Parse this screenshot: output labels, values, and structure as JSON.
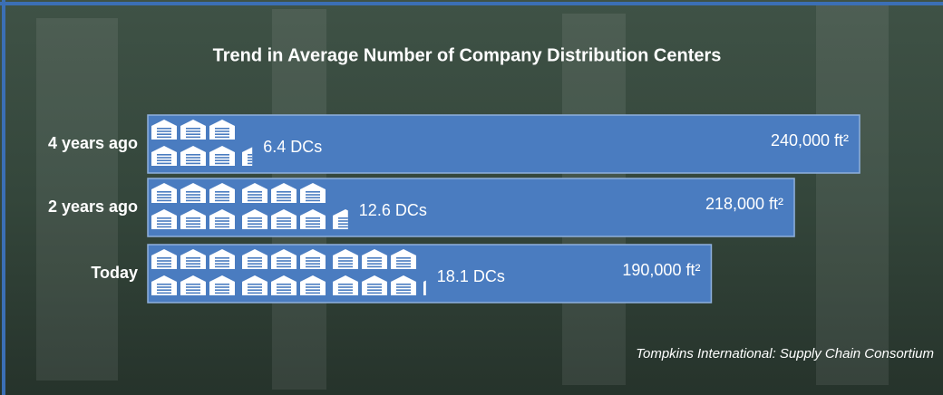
{
  "chart_data": {
    "type": "bar",
    "orientation": "horizontal",
    "title": "Trend in Average Number of Company Distribution Centers",
    "categories": [
      "4 years ago",
      "2 years ago",
      "Today"
    ],
    "values": [
      240000,
      218000,
      190000
    ],
    "value_labels": [
      "240,000 ft²",
      "218,000 ft²",
      "190,000 ft²"
    ],
    "color": "#4a7cc0",
    "xlim": [
      0,
      240000
    ],
    "dc_counts": [
      6.4,
      12.6,
      18.1
    ],
    "dc_labels": [
      "6.4  DCs",
      "12.6 DCs",
      "18.1  DCs"
    ],
    "source": "Tompkins International: Supply Chain Consortium"
  }
}
